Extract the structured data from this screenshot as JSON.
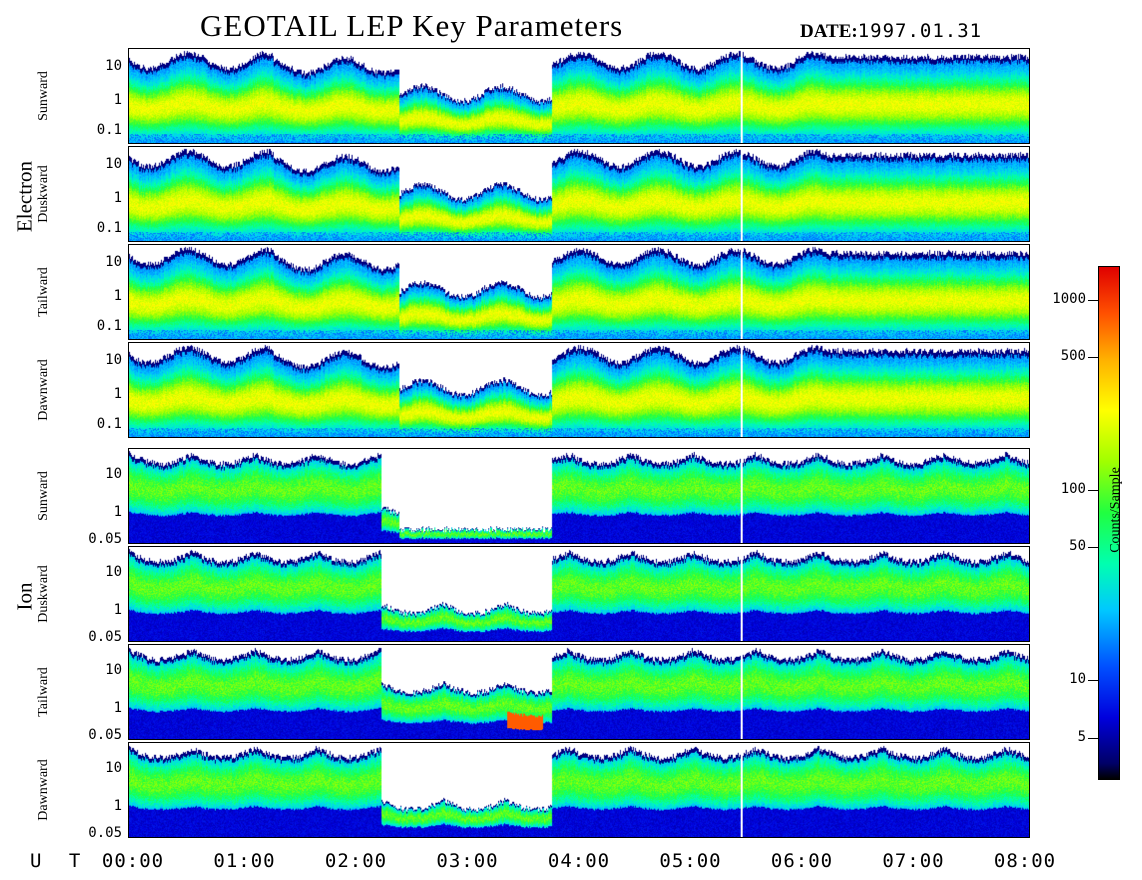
{
  "title": "GEOTAIL LEP Key Parameters",
  "date_label": "DATE:",
  "date_value": "1997.01.31",
  "ut_label": "U T",
  "chart_data": {
    "type": "heatmap",
    "title": "GEOTAIL LEP Key Parameters",
    "x_ticks": [
      "00:00",
      "01:00",
      "02:00",
      "03:00",
      "04:00",
      "05:00",
      "06:00",
      "07:00",
      "08:00"
    ],
    "colorbar": {
      "label": "Counts/Sample",
      "ticks": [
        "1000",
        "500",
        "100",
        "50",
        "10",
        "5"
      ],
      "tick_values": [
        1000,
        500,
        100,
        50,
        10,
        5
      ],
      "range": [
        3,
        1500
      ],
      "scale": "log",
      "colors": [
        "#000000",
        "#0000dd",
        "#0050ff",
        "#00c8ff",
        "#00ffb0",
        "#20ff40",
        "#a0ff00",
        "#ffff00",
        "#ffb000",
        "#ff5000",
        "#e00000"
      ]
    },
    "groups": [
      {
        "name": "Electron",
        "panels": [
          {
            "label": "Sunward",
            "y_ticks": [
              "10",
              "1",
              "0.1"
            ]
          },
          {
            "label": "Duskward",
            "y_ticks": [
              "10",
              "1",
              "0.1"
            ]
          },
          {
            "label": "Tailward",
            "y_ticks": [
              "10",
              "1",
              "0.1"
            ]
          },
          {
            "label": "Dawnward",
            "y_ticks": [
              "10",
              "1",
              "0.1"
            ]
          }
        ]
      },
      {
        "name": "Ion",
        "panels": [
          {
            "label": "Sunward",
            "y_ticks": [
              "10",
              "1",
              "0.05"
            ]
          },
          {
            "label": "Duskward",
            "y_ticks": [
              "10",
              "1",
              "0.05"
            ]
          },
          {
            "label": "Tailward",
            "y_ticks": [
              "10",
              "1",
              "0.05"
            ]
          },
          {
            "label": "Dawnward",
            "y_ticks": [
              "10",
              "1",
              "0.05"
            ]
          }
        ]
      }
    ]
  }
}
